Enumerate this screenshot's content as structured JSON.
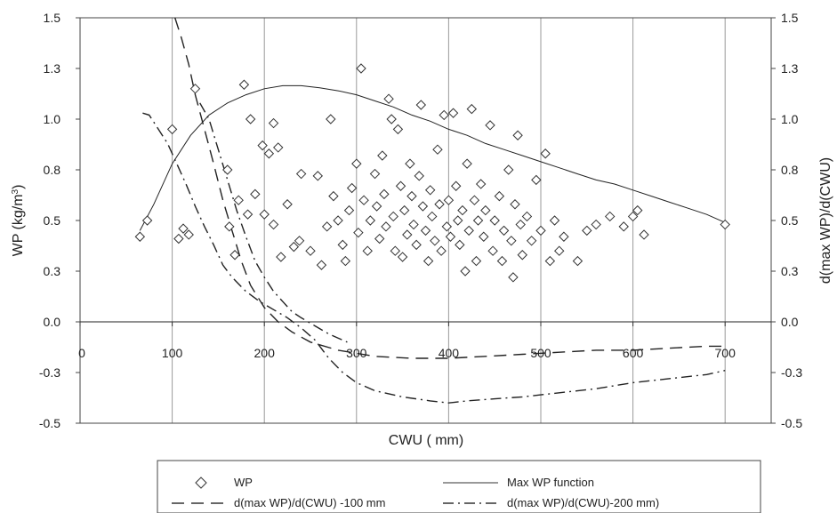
{
  "chart_data": {
    "type": "scatter",
    "xlabel": "CWU ( mm)",
    "ylabel": "WP (kg/m",
    "ylabel_sup": "3",
    "ylabel_close": ")",
    "y2label": "d(max WP)/d(CWU)",
    "xlim": [
      0,
      750
    ],
    "ylim": [
      -0.5,
      1.5
    ],
    "y2lim": [
      -0.5,
      1.5
    ],
    "x_ticks": [
      0,
      100,
      200,
      300,
      400,
      500,
      600,
      700
    ],
    "x_tick_labels": [
      "0",
      "100",
      "200",
      "300",
      "400",
      "500",
      "600",
      "700"
    ],
    "y_ticks": [
      -0.5,
      -0.25,
      0.0,
      0.25,
      0.5,
      0.75,
      1.0,
      1.25,
      1.5
    ],
    "y_tick_labels": [
      "-0.5",
      "-0.3",
      "0.0",
      "0.3",
      "0.5",
      "0.8",
      "1.0",
      "1.3",
      "1.5"
    ],
    "grid": "vertical",
    "legend_position": "bottom",
    "series": [
      {
        "name": "WP",
        "type": "scatter",
        "marker": "diamond",
        "points": [
          [
            65,
            0.42
          ],
          [
            73,
            0.5
          ],
          [
            100,
            0.95
          ],
          [
            107,
            0.41
          ],
          [
            112,
            0.46
          ],
          [
            118,
            0.43
          ],
          [
            125,
            1.15
          ],
          [
            160,
            0.75
          ],
          [
            162,
            0.47
          ],
          [
            168,
            0.33
          ],
          [
            172,
            0.6
          ],
          [
            178,
            1.17
          ],
          [
            182,
            0.53
          ],
          [
            185,
            1.0
          ],
          [
            190,
            0.63
          ],
          [
            198,
            0.87
          ],
          [
            200,
            0.53
          ],
          [
            205,
            0.83
          ],
          [
            210,
            0.48
          ],
          [
            210,
            0.98
          ],
          [
            215,
            0.86
          ],
          [
            218,
            0.32
          ],
          [
            225,
            0.58
          ],
          [
            232,
            0.37
          ],
          [
            238,
            0.4
          ],
          [
            240,
            0.73
          ],
          [
            250,
            0.35
          ],
          [
            258,
            0.72
          ],
          [
            262,
            0.28
          ],
          [
            268,
            0.47
          ],
          [
            272,
            1.0
          ],
          [
            275,
            0.62
          ],
          [
            280,
            0.5
          ],
          [
            285,
            0.38
          ],
          [
            288,
            0.3
          ],
          [
            292,
            0.55
          ],
          [
            295,
            0.66
          ],
          [
            300,
            0.78
          ],
          [
            302,
            0.44
          ],
          [
            305,
            1.25
          ],
          [
            308,
            0.6
          ],
          [
            312,
            0.35
          ],
          [
            315,
            0.5
          ],
          [
            320,
            0.73
          ],
          [
            322,
            0.57
          ],
          [
            325,
            0.41
          ],
          [
            328,
            0.82
          ],
          [
            330,
            0.63
          ],
          [
            332,
            0.47
          ],
          [
            335,
            1.1
          ],
          [
            338,
            1.0
          ],
          [
            340,
            0.52
          ],
          [
            342,
            0.35
          ],
          [
            345,
            0.95
          ],
          [
            348,
            0.67
          ],
          [
            350,
            0.32
          ],
          [
            352,
            0.55
          ],
          [
            355,
            0.43
          ],
          [
            358,
            0.78
          ],
          [
            360,
            0.62
          ],
          [
            362,
            0.48
          ],
          [
            365,
            0.38
          ],
          [
            368,
            0.72
          ],
          [
            370,
            1.07
          ],
          [
            372,
            0.57
          ],
          [
            375,
            0.45
          ],
          [
            378,
            0.3
          ],
          [
            380,
            0.65
          ],
          [
            382,
            0.52
          ],
          [
            385,
            0.4
          ],
          [
            388,
            0.85
          ],
          [
            390,
            0.58
          ],
          [
            392,
            0.35
          ],
          [
            395,
            1.02
          ],
          [
            398,
            0.47
          ],
          [
            400,
            0.6
          ],
          [
            402,
            0.42
          ],
          [
            405,
            1.03
          ],
          [
            408,
            0.67
          ],
          [
            410,
            0.5
          ],
          [
            412,
            0.38
          ],
          [
            415,
            0.55
          ],
          [
            418,
            0.25
          ],
          [
            420,
            0.78
          ],
          [
            422,
            0.45
          ],
          [
            425,
            1.05
          ],
          [
            428,
            0.6
          ],
          [
            430,
            0.3
          ],
          [
            432,
            0.5
          ],
          [
            435,
            0.68
          ],
          [
            438,
            0.42
          ],
          [
            440,
            0.55
          ],
          [
            445,
            0.97
          ],
          [
            448,
            0.35
          ],
          [
            450,
            0.5
          ],
          [
            455,
            0.62
          ],
          [
            458,
            0.3
          ],
          [
            460,
            0.45
          ],
          [
            465,
            0.75
          ],
          [
            468,
            0.4
          ],
          [
            470,
            0.22
          ],
          [
            472,
            0.58
          ],
          [
            475,
            0.92
          ],
          [
            478,
            0.48
          ],
          [
            480,
            0.33
          ],
          [
            485,
            0.52
          ],
          [
            490,
            0.4
          ],
          [
            495,
            0.7
          ],
          [
            500,
            0.45
          ],
          [
            505,
            0.83
          ],
          [
            510,
            0.3
          ],
          [
            515,
            0.5
          ],
          [
            520,
            0.35
          ],
          [
            525,
            0.42
          ],
          [
            540,
            0.3
          ],
          [
            550,
            0.45
          ],
          [
            560,
            0.48
          ],
          [
            575,
            0.52
          ],
          [
            590,
            0.47
          ],
          [
            600,
            0.52
          ],
          [
            605,
            0.55
          ],
          [
            612,
            0.43
          ],
          [
            700,
            0.48
          ]
        ]
      },
      {
        "name": "Max WP function",
        "type": "line",
        "style": "solid",
        "points": [
          [
            65,
            0.45
          ],
          [
            80,
            0.58
          ],
          [
            100,
            0.78
          ],
          [
            120,
            0.92
          ],
          [
            140,
            1.02
          ],
          [
            160,
            1.08
          ],
          [
            180,
            1.12
          ],
          [
            200,
            1.15
          ],
          [
            220,
            1.165
          ],
          [
            240,
            1.165
          ],
          [
            260,
            1.155
          ],
          [
            280,
            1.14
          ],
          [
            300,
            1.12
          ],
          [
            320,
            1.09
          ],
          [
            340,
            1.06
          ],
          [
            360,
            1.02
          ],
          [
            380,
            0.99
          ],
          [
            400,
            0.95
          ],
          [
            420,
            0.92
          ],
          [
            440,
            0.88
          ],
          [
            460,
            0.85
          ],
          [
            480,
            0.82
          ],
          [
            500,
            0.79
          ],
          [
            520,
            0.76
          ],
          [
            540,
            0.73
          ],
          [
            560,
            0.7
          ],
          [
            580,
            0.68
          ],
          [
            600,
            0.65
          ],
          [
            620,
            0.62
          ],
          [
            640,
            0.59
          ],
          [
            660,
            0.56
          ],
          [
            680,
            0.53
          ],
          [
            700,
            0.49
          ]
        ]
      },
      {
        "name": "d(max WP)/d(CWU) -100 mm",
        "type": "line",
        "style": "dashed",
        "points": [
          [
            103,
            1.5
          ],
          [
            110,
            1.4
          ],
          [
            118,
            1.27
          ],
          [
            125,
            1.12
          ],
          [
            135,
            0.95
          ],
          [
            145,
            0.78
          ],
          [
            155,
            0.6
          ],
          [
            165,
            0.45
          ],
          [
            175,
            0.3
          ],
          [
            185,
            0.18
          ],
          [
            200,
            0.07
          ],
          [
            215,
            0.0
          ],
          [
            230,
            -0.05
          ],
          [
            250,
            -0.1
          ],
          [
            280,
            -0.14
          ],
          [
            320,
            -0.17
          ],
          [
            360,
            -0.18
          ],
          [
            400,
            -0.18
          ],
          [
            440,
            -0.17
          ],
          [
            480,
            -0.16
          ],
          [
            520,
            -0.15
          ],
          [
            560,
            -0.14
          ],
          [
            600,
            -0.14
          ],
          [
            640,
            -0.13
          ],
          [
            680,
            -0.12
          ],
          [
            700,
            -0.12
          ]
        ]
      },
      {
        "name": "d(max WP)/d(CWU)-200 mm)",
        "type": "line",
        "style": "dash-dot",
        "points": [
          [
            68,
            1.03
          ],
          [
            75,
            1.02
          ],
          [
            85,
            0.95
          ],
          [
            95,
            0.88
          ],
          [
            105,
            0.78
          ],
          [
            115,
            0.68
          ],
          [
            125,
            0.57
          ],
          [
            135,
            0.47
          ],
          [
            145,
            0.38
          ],
          [
            155,
            0.28
          ],
          [
            165,
            0.22
          ],
          [
            180,
            0.15
          ],
          [
            195,
            0.1
          ],
          [
            210,
            0.06
          ],
          [
            225,
            0.02
          ],
          [
            240,
            -0.03
          ],
          [
            255,
            -0.09
          ],
          [
            270,
            -0.18
          ],
          [
            285,
            -0.25
          ],
          [
            300,
            -0.3
          ],
          [
            320,
            -0.34
          ],
          [
            350,
            -0.37
          ],
          [
            380,
            -0.39
          ],
          [
            400,
            -0.4
          ],
          [
            420,
            -0.39
          ],
          [
            450,
            -0.38
          ],
          [
            480,
            -0.37
          ],
          [
            520,
            -0.35
          ],
          [
            560,
            -0.33
          ],
          [
            600,
            -0.3
          ],
          [
            640,
            -0.28
          ],
          [
            680,
            -0.26
          ],
          [
            700,
            -0.24
          ]
        ]
      },
      {
        "name": "d(max WP)/d(CWU)-200 mm) upper",
        "type": "line",
        "style": "dash-dot",
        "legend": false,
        "points": [
          [
            130,
            1.08
          ],
          [
            140,
            1.0
          ],
          [
            150,
            0.85
          ],
          [
            160,
            0.7
          ],
          [
            170,
            0.55
          ],
          [
            180,
            0.42
          ],
          [
            190,
            0.3
          ],
          [
            200,
            0.22
          ],
          [
            210,
            0.15
          ],
          [
            220,
            0.1
          ],
          [
            230,
            0.05
          ],
          [
            240,
            0.02
          ],
          [
            255,
            -0.02
          ],
          [
            270,
            -0.06
          ],
          [
            290,
            -0.1
          ]
        ]
      }
    ]
  }
}
